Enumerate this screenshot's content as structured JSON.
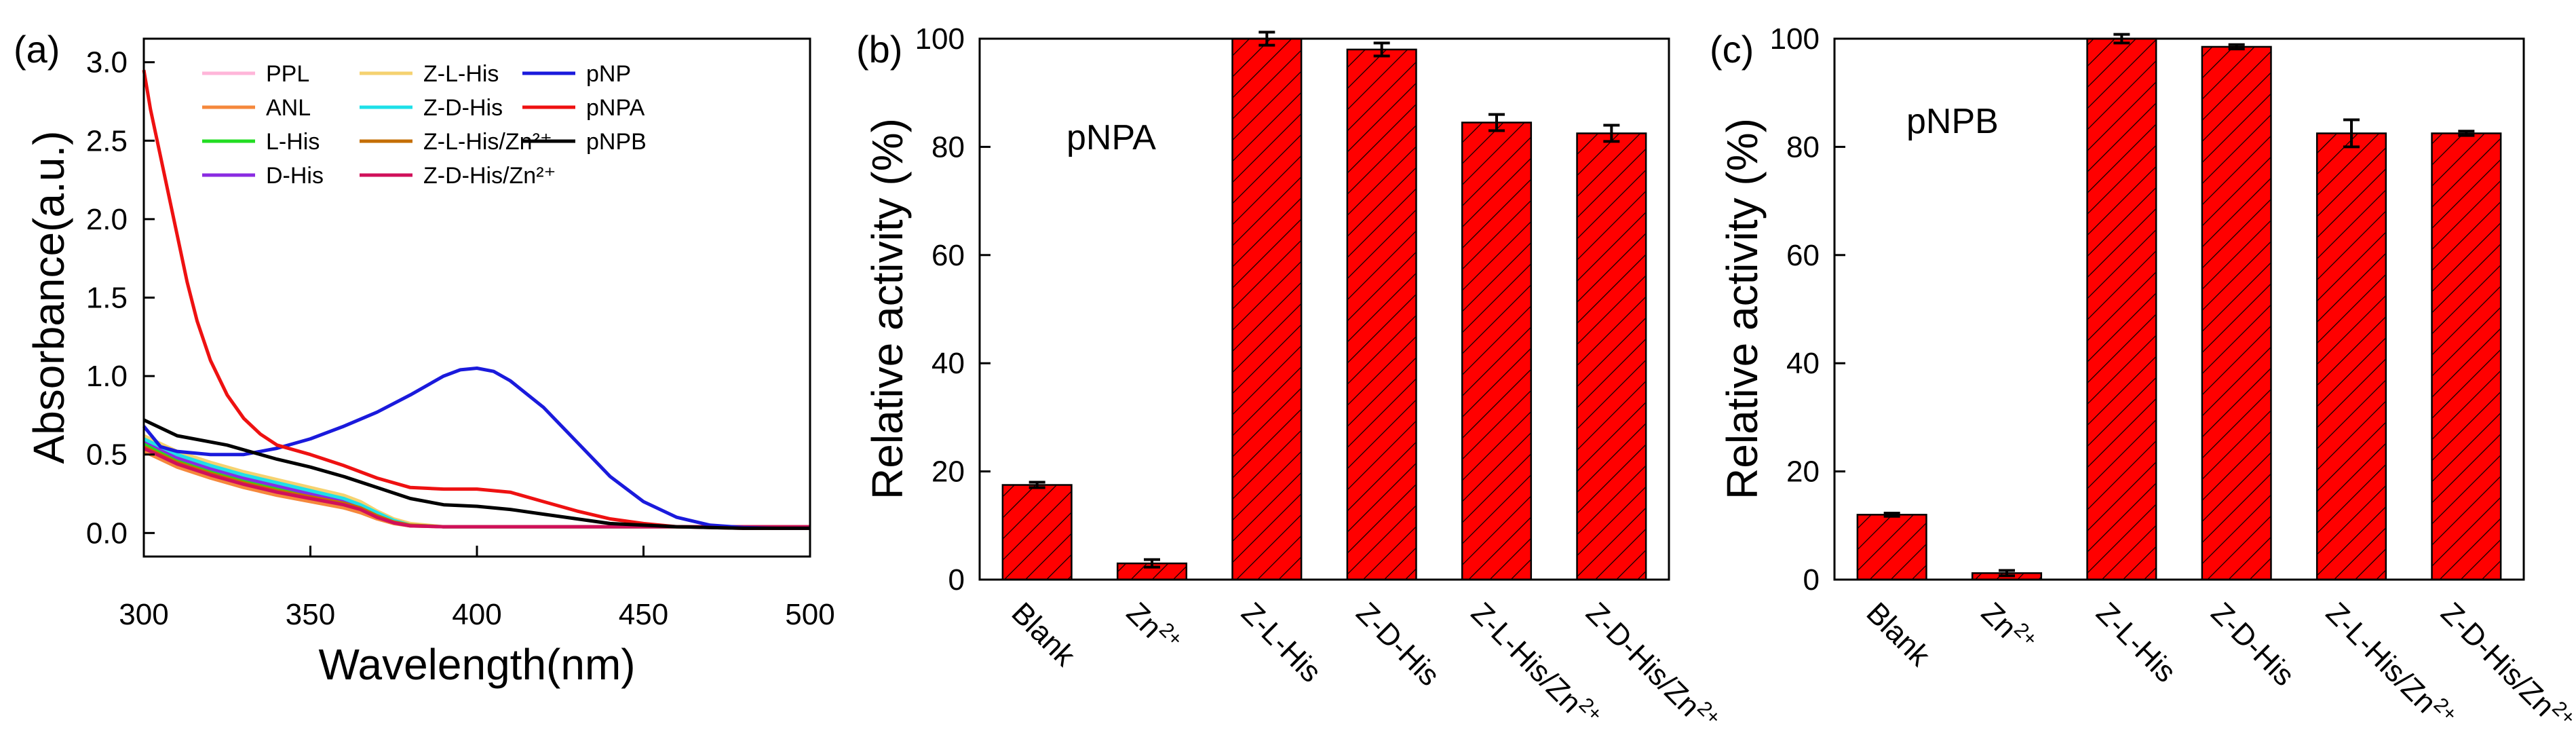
{
  "panels": [
    {
      "label": "(a)"
    },
    {
      "label": "(b)"
    },
    {
      "label": "(c)"
    }
  ],
  "chart_data": [
    {
      "type": "line",
      "xlabel": "Wavelength(nm)",
      "ylabel": "Absorbance(a.u.)",
      "xlim": [
        300,
        500
      ],
      "ylim": [
        -0.15,
        3.15
      ],
      "xticks": [
        300,
        350,
        400,
        450,
        500
      ],
      "xtick_labels": [
        "300",
        "350",
        "400",
        "450",
        "500"
      ],
      "yticks": [
        0,
        0.5,
        1,
        1.5,
        2,
        2.5,
        3
      ],
      "ytick_labels": [
        "0.0",
        "0.5",
        "1.0",
        "1.5",
        "2.0",
        "2.5",
        "3.0"
      ],
      "grid": false,
      "legend_position": "top",
      "series": [
        {
          "name": "PPL",
          "color": "#ffb6d9",
          "x": [
            300,
            310,
            320,
            330,
            340,
            350,
            360,
            365,
            370,
            375,
            380,
            390,
            400,
            420,
            450,
            500
          ],
          "y": [
            0.56,
            0.46,
            0.38,
            0.32,
            0.27,
            0.22,
            0.18,
            0.15,
            0.11,
            0.07,
            0.05,
            0.04,
            0.04,
            0.04,
            0.04,
            0.04
          ]
        },
        {
          "name": "ANL",
          "color": "#f5883c",
          "x": [
            300,
            310,
            320,
            330,
            340,
            350,
            360,
            365,
            370,
            375,
            380,
            390,
            400,
            420,
            450,
            500
          ],
          "y": [
            0.52,
            0.42,
            0.35,
            0.29,
            0.24,
            0.2,
            0.16,
            0.13,
            0.09,
            0.06,
            0.045,
            0.04,
            0.04,
            0.04,
            0.04,
            0.04
          ]
        },
        {
          "name": "L-His",
          "color": "#22dd22",
          "x": [
            300,
            310,
            320,
            330,
            340,
            350,
            360,
            365,
            370,
            375,
            380,
            390,
            400,
            420,
            450,
            500
          ],
          "y": [
            0.57,
            0.47,
            0.4,
            0.34,
            0.29,
            0.24,
            0.19,
            0.16,
            0.12,
            0.08,
            0.05,
            0.04,
            0.04,
            0.04,
            0.04,
            0.04
          ]
        },
        {
          "name": "D-His",
          "color": "#8a2be2",
          "x": [
            300,
            310,
            320,
            330,
            340,
            350,
            360,
            365,
            370,
            375,
            380,
            390,
            400,
            420,
            450,
            500
          ],
          "y": [
            0.59,
            0.48,
            0.41,
            0.35,
            0.3,
            0.25,
            0.2,
            0.17,
            0.12,
            0.08,
            0.05,
            0.04,
            0.04,
            0.04,
            0.04,
            0.04
          ]
        },
        {
          "name": "Z-L-His",
          "color": "#f5d270",
          "x": [
            300,
            310,
            320,
            330,
            340,
            350,
            360,
            365,
            370,
            375,
            380,
            390,
            400,
            420,
            450,
            500
          ],
          "y": [
            0.62,
            0.52,
            0.45,
            0.39,
            0.34,
            0.29,
            0.24,
            0.2,
            0.14,
            0.09,
            0.06,
            0.04,
            0.04,
            0.04,
            0.04,
            0.04
          ]
        },
        {
          "name": "Z-D-His",
          "color": "#1ee0e8",
          "x": [
            300,
            310,
            320,
            330,
            340,
            350,
            360,
            365,
            370,
            375,
            380,
            390,
            400,
            420,
            450,
            500
          ],
          "y": [
            0.6,
            0.5,
            0.43,
            0.37,
            0.32,
            0.27,
            0.22,
            0.18,
            0.13,
            0.08,
            0.05,
            0.04,
            0.04,
            0.04,
            0.04,
            0.04
          ]
        },
        {
          "name": "Z-L-His/Zn²⁺",
          "color": "#c46e00",
          "x": [
            300,
            310,
            320,
            330,
            340,
            350,
            360,
            365,
            370,
            375,
            380,
            390,
            400,
            420,
            450,
            500
          ],
          "y": [
            0.55,
            0.45,
            0.38,
            0.32,
            0.27,
            0.23,
            0.19,
            0.16,
            0.11,
            0.07,
            0.05,
            0.04,
            0.04,
            0.04,
            0.04,
            0.04
          ]
        },
        {
          "name": "Z-D-His/Zn²⁺",
          "color": "#d0105a",
          "x": [
            300,
            310,
            320,
            330,
            340,
            350,
            360,
            365,
            370,
            375,
            380,
            390,
            400,
            420,
            450,
            500
          ],
          "y": [
            0.54,
            0.44,
            0.37,
            0.31,
            0.26,
            0.22,
            0.18,
            0.15,
            0.1,
            0.065,
            0.045,
            0.04,
            0.04,
            0.04,
            0.04,
            0.04
          ]
        },
        {
          "name": "pNP",
          "color": "#1a1adc",
          "x": [
            300,
            305,
            310,
            320,
            330,
            340,
            350,
            360,
            370,
            380,
            390,
            395,
            400,
            405,
            410,
            420,
            430,
            440,
            450,
            460,
            470,
            480,
            490,
            500
          ],
          "y": [
            0.68,
            0.55,
            0.52,
            0.5,
            0.5,
            0.54,
            0.6,
            0.68,
            0.77,
            0.88,
            1.0,
            1.04,
            1.05,
            1.03,
            0.97,
            0.8,
            0.58,
            0.36,
            0.2,
            0.1,
            0.05,
            0.035,
            0.03,
            0.03
          ]
        },
        {
          "name": "pNPA",
          "color": "#ee1111",
          "x": [
            300,
            302,
            305,
            308,
            310,
            313,
            316,
            320,
            325,
            330,
            335,
            340,
            350,
            360,
            370,
            380,
            390,
            400,
            410,
            420,
            430,
            440,
            450,
            460,
            470,
            480,
            490,
            500
          ],
          "y": [
            2.95,
            2.7,
            2.4,
            2.1,
            1.9,
            1.6,
            1.35,
            1.1,
            0.88,
            0.73,
            0.63,
            0.56,
            0.5,
            0.43,
            0.35,
            0.29,
            0.28,
            0.28,
            0.26,
            0.2,
            0.14,
            0.09,
            0.06,
            0.04,
            0.035,
            0.03,
            0.03,
            0.03
          ]
        },
        {
          "name": "pNPB",
          "color": "#000000",
          "x": [
            300,
            310,
            320,
            325,
            330,
            340,
            350,
            360,
            370,
            380,
            390,
            400,
            410,
            420,
            430,
            440,
            450,
            460,
            470,
            480,
            490,
            500
          ],
          "y": [
            0.72,
            0.62,
            0.58,
            0.56,
            0.53,
            0.47,
            0.42,
            0.36,
            0.29,
            0.22,
            0.18,
            0.17,
            0.15,
            0.12,
            0.09,
            0.06,
            0.05,
            0.04,
            0.035,
            0.03,
            0.03,
            0.03
          ]
        }
      ]
    },
    {
      "type": "bar",
      "annotation": "pNPA",
      "ylabel": "Relative activity (%)",
      "ylim": [
        0,
        100
      ],
      "yticks": [
        0,
        20,
        40,
        60,
        80,
        100
      ],
      "ytick_labels": [
        "0",
        "20",
        "40",
        "60",
        "80",
        "100"
      ],
      "bar_color": "#ff0000",
      "hatch": true,
      "categories": [
        "Blank",
        "Zn2+",
        "Z-L-His",
        "Z-D-His",
        "Z-L-His/Zn2+",
        "Z-D-His/Zn2+"
      ],
      "category_labels": [
        {
          "base": "Blank",
          "sup": ""
        },
        {
          "base": "Zn",
          "sup": "2+"
        },
        {
          "base": "Z-L-His",
          "sup": ""
        },
        {
          "base": "Z-D-His",
          "sup": ""
        },
        {
          "base": "Z-L-His/Zn",
          "sup": "2+"
        },
        {
          "base": "Z-D-His/Zn",
          "sup": "2+"
        }
      ],
      "values": [
        17.5,
        3.0,
        100,
        98,
        84.5,
        82.5
      ],
      "errors": [
        0.5,
        0.7,
        1.2,
        1.2,
        1.5,
        1.5
      ]
    },
    {
      "type": "bar",
      "annotation": "pNPB",
      "ylabel": "Relative activity (%)",
      "ylim": [
        0,
        100
      ],
      "yticks": [
        0,
        20,
        40,
        60,
        80,
        100
      ],
      "ytick_labels": [
        "0",
        "20",
        "40",
        "60",
        "80",
        "100"
      ],
      "bar_color": "#ff0000",
      "hatch": true,
      "categories": [
        "Blank",
        "Zn2+",
        "Z-L-His",
        "Z-D-His",
        "Z-L-His/Zn2+",
        "Z-D-His/Zn2+"
      ],
      "category_labels": [
        {
          "base": "Blank",
          "sup": ""
        },
        {
          "base": "Zn",
          "sup": "2+"
        },
        {
          "base": "Z-L-His",
          "sup": ""
        },
        {
          "base": "Z-D-His",
          "sup": ""
        },
        {
          "base": "Z-L-His/Zn",
          "sup": "2+"
        },
        {
          "base": "Z-D-His/Zn",
          "sup": "2+"
        }
      ],
      "values": [
        12.0,
        1.2,
        100,
        98.5,
        82.5,
        82.5
      ],
      "errors": [
        0.3,
        0.5,
        0.8,
        0.4,
        2.5,
        0.4
      ]
    }
  ]
}
